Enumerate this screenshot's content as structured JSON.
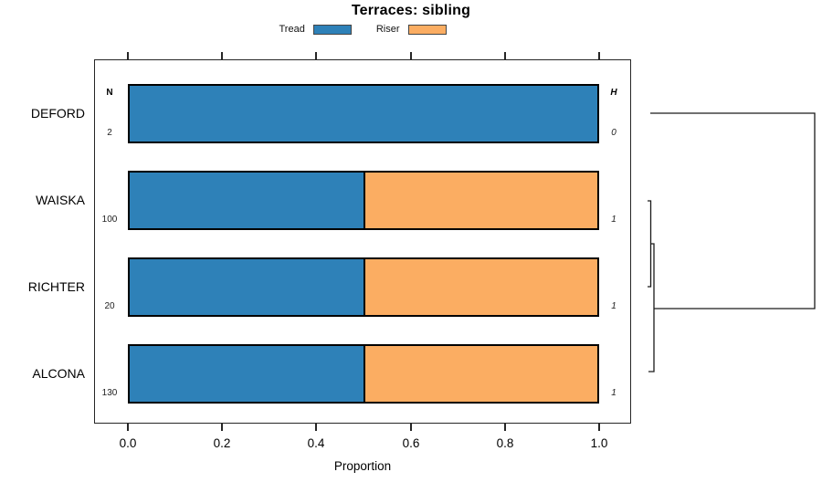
{
  "title": "Terraces: sibling",
  "legend": {
    "items": [
      {
        "label": "Tread"
      },
      {
        "label": "Riser"
      }
    ]
  },
  "colors": {
    "tread": "#2E81B8",
    "riser": "#FBAD62"
  },
  "axis": {
    "label": "Proportion",
    "ticks": [
      "0.0",
      "0.2",
      "0.4",
      "0.6",
      "0.8",
      "1.0"
    ]
  },
  "columns": {
    "n_header": "N",
    "h_header": "H"
  },
  "rows": [
    {
      "label": "DEFORD",
      "n": "2",
      "h": "0",
      "tread": 1.0,
      "riser": 0.0
    },
    {
      "label": "WAISKA",
      "n": "100",
      "h": "1",
      "tread": 0.5,
      "riser": 0.5
    },
    {
      "label": "RICHTER",
      "n": "20",
      "h": "1",
      "tread": 0.5,
      "riser": 0.5
    },
    {
      "label": "ALCONA",
      "n": "130",
      "h": "1",
      "tread": 0.5,
      "riser": 0.5
    }
  ],
  "chart_data": {
    "type": "bar",
    "orientation": "horizontal",
    "stacked": true,
    "title": "Terraces: sibling",
    "xlabel": "Proportion",
    "xlim": [
      0,
      1
    ],
    "xticks": [
      0.0,
      0.2,
      0.4,
      0.6,
      0.8,
      1.0
    ],
    "grid": false,
    "legend_position": "top",
    "categories": [
      "DEFORD",
      "WAISKA",
      "RICHTER",
      "ALCONA"
    ],
    "series": [
      {
        "name": "Tread",
        "color": "#2E81B8",
        "values": [
          1.0,
          0.5,
          0.5,
          0.5
        ]
      },
      {
        "name": "Riser",
        "color": "#FBAD62",
        "values": [
          0.0,
          0.5,
          0.5,
          0.5
        ]
      }
    ],
    "n_column": {
      "header": "N",
      "values": [
        2,
        100,
        20,
        130
      ]
    },
    "h_column": {
      "header": "H",
      "values": [
        0,
        1,
        1,
        1
      ]
    },
    "dendrogram": {
      "position": "right",
      "leaves": [
        "DEFORD",
        "WAISKA",
        "RICHTER",
        "ALCONA"
      ],
      "merges": [
        {
          "members": [
            "WAISKA",
            "RICHTER"
          ],
          "relative_height": "very low"
        },
        {
          "members": [
            "WAISKA+RICHTER",
            "ALCONA"
          ],
          "relative_height": "very low"
        },
        {
          "members": [
            "DEFORD",
            "WAISKA+RICHTER+ALCONA"
          ],
          "relative_height": "high"
        }
      ]
    }
  }
}
